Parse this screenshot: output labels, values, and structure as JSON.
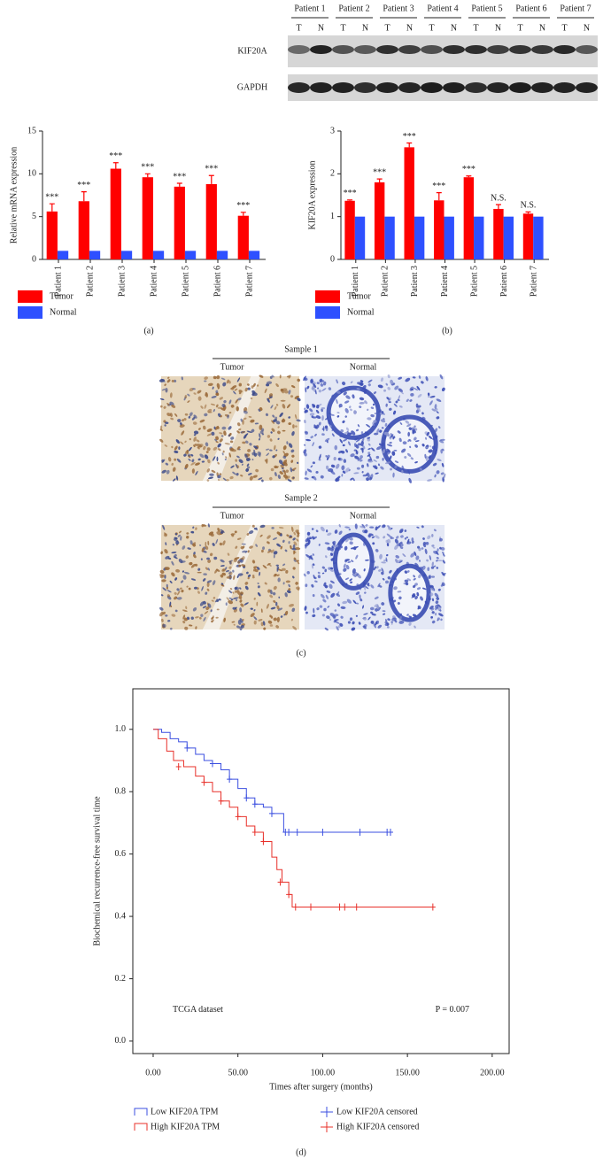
{
  "western_blot": {
    "patients": [
      "Patient 1",
      "Patient 2",
      "Patient 3",
      "Patient 4",
      "Patient 5",
      "Patient 6",
      "Patient 7"
    ],
    "lanes": [
      "T",
      "N",
      "T",
      "N",
      "T",
      "N",
      "T",
      "N",
      "T",
      "N",
      "T",
      "N",
      "T",
      "N"
    ],
    "rows": [
      "KIF20A",
      "GAPDH"
    ]
  },
  "histology": {
    "samples": [
      {
        "title": "Sample 1",
        "tumor": "Tumor",
        "normal": "Normal"
      },
      {
        "title": "Sample 2",
        "tumor": "Tumor",
        "normal": "Normal"
      }
    ],
    "caption": "(c)"
  },
  "chart_data": [
    {
      "type": "bar",
      "caption": "(a)",
      "y_label": "Relative mRNA expression",
      "categories": [
        "Patient 1",
        "Patient 2",
        "Patient 3",
        "Patient 4",
        "Patient 5",
        "Patient 6",
        "Patient 7"
      ],
      "series": [
        {
          "name": "Tumor",
          "color": "#ff0000",
          "values": [
            5.6,
            6.8,
            10.6,
            9.6,
            8.5,
            8.8,
            5.1
          ],
          "errors": [
            0.9,
            1.1,
            0.7,
            0.4,
            0.4,
            1.0,
            0.4
          ]
        },
        {
          "name": "Normal",
          "color": "#2e50ff",
          "values": [
            1,
            1,
            1,
            1,
            1,
            1,
            1
          ]
        }
      ],
      "annotations": [
        "***",
        "***",
        "***",
        "***",
        "***",
        "***",
        "***"
      ],
      "ylim": [
        0,
        15
      ],
      "yticks": [
        0,
        5,
        10,
        15
      ],
      "grid": false
    },
    {
      "type": "bar",
      "caption": "(b)",
      "y_label": "KIF20A expression",
      "categories": [
        "Patient 1",
        "Patient 2",
        "Patient 3",
        "Patient 4",
        "Patient 5",
        "Patient 6",
        "Patient 7"
      ],
      "series": [
        {
          "name": "Tumor",
          "color": "#ff0000",
          "values": [
            1.37,
            1.8,
            2.62,
            1.38,
            1.92,
            1.18,
            1.07
          ],
          "errors": [
            0.02,
            0.08,
            0.1,
            0.18,
            0.03,
            0.1,
            0.04
          ]
        },
        {
          "name": "Normal",
          "color": "#2e50ff",
          "values": [
            1,
            1,
            1,
            1,
            1,
            1,
            1
          ]
        }
      ],
      "annotations": [
        "***",
        "***",
        "***",
        "***",
        "***",
        "N.S.",
        "N.S."
      ],
      "ylim": [
        0,
        3
      ],
      "yticks": [
        0,
        1,
        2,
        3
      ],
      "grid": false
    },
    {
      "type": "line",
      "caption": "(d)",
      "x_label": "Times after surgery (months)",
      "y_label": "Biochemical recurrence-free survival time",
      "annotations": [
        "TCGA dataset",
        "P = 0.007"
      ],
      "xlim": [
        -12,
        210
      ],
      "ylim": [
        -0.04,
        1.13
      ],
      "xticks": [
        {
          "value": 0,
          "label": "0.00"
        },
        {
          "value": 50,
          "label": "50.00"
        },
        {
          "value": 100,
          "label": "100.00"
        },
        {
          "value": 150,
          "label": "150.00"
        },
        {
          "value": 200,
          "label": "200.00"
        }
      ],
      "yticks": [
        {
          "value": 0,
          "label": "0.0"
        },
        {
          "value": 0.2,
          "label": "0.2"
        },
        {
          "value": 0.4,
          "label": "0.4"
        },
        {
          "value": 0.6,
          "label": "0.6"
        },
        {
          "value": 0.8,
          "label": "0.8"
        },
        {
          "value": 1,
          "label": "1.0"
        }
      ],
      "series": [
        {
          "name": "Low KIF20A TPM",
          "color": "#3b4fe0",
          "step": true,
          "x": [
            0,
            5,
            10,
            15,
            20,
            25,
            30,
            35,
            40,
            45,
            50,
            55,
            60,
            65,
            70,
            77,
            140
          ],
          "values": [
            1,
            0.99,
            0.97,
            0.96,
            0.94,
            0.92,
            0.9,
            0.89,
            0.87,
            0.84,
            0.81,
            0.78,
            0.76,
            0.75,
            0.73,
            0.67,
            0.67
          ]
        },
        {
          "name": "High KIF20A TPM",
          "color": "#e8302a",
          "step": true,
          "x": [
            0,
            3,
            8,
            12,
            18,
            25,
            30,
            35,
            40,
            45,
            50,
            55,
            60,
            65,
            70,
            73,
            76,
            80,
            82,
            165
          ],
          "values": [
            1,
            0.97,
            0.93,
            0.9,
            0.88,
            0.85,
            0.83,
            0.8,
            0.77,
            0.75,
            0.72,
            0.69,
            0.67,
            0.64,
            0.59,
            0.55,
            0.51,
            0.47,
            0.43,
            0.43
          ]
        },
        {
          "name": "Low KIF20A censored",
          "color": "#3b4fe0",
          "marker": "plus",
          "x": [
            20,
            35,
            45,
            55,
            60,
            70,
            78,
            80,
            85,
            100,
            122,
            138,
            140
          ],
          "values": [
            0.94,
            0.89,
            0.84,
            0.78,
            0.76,
            0.73,
            0.67,
            0.67,
            0.67,
            0.67,
            0.67,
            0.67,
            0.67
          ]
        },
        {
          "name": "High KIF20A censored",
          "color": "#e8302a",
          "marker": "plus",
          "x": [
            15,
            30,
            40,
            50,
            60,
            65,
            75,
            80,
            84,
            93,
            110,
            113,
            120,
            165
          ],
          "values": [
            0.88,
            0.83,
            0.77,
            0.72,
            0.67,
            0.64,
            0.51,
            0.47,
            0.43,
            0.43,
            0.43,
            0.43,
            0.43,
            0.43
          ]
        }
      ]
    }
  ]
}
